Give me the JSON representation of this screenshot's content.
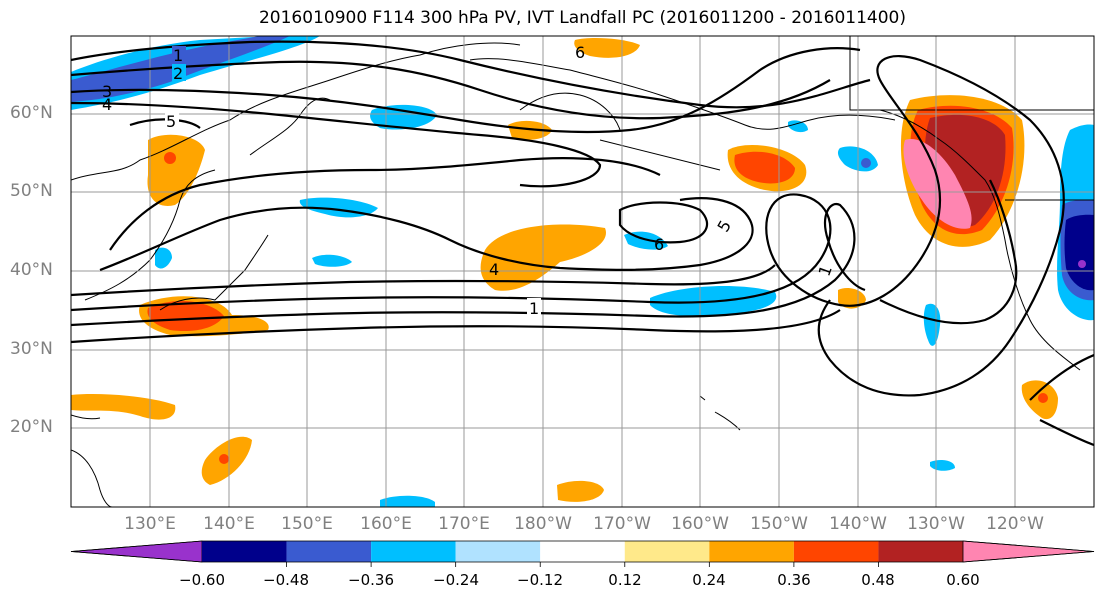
{
  "title": "2016010900 F114 300 hPa PV, IVT Landfall PC (2016011200 - 2016011400)",
  "lat_labels": [
    "60°N",
    "50°N",
    "40°N",
    "30°N",
    "20°N"
  ],
  "lon_labels": [
    "130°E",
    "140°E",
    "150°E",
    "160°E",
    "170°E",
    "180°W",
    "170°W",
    "160°W",
    "150°W",
    "140°W",
    "130°W",
    "120°W"
  ],
  "contour_labels": [
    "1",
    "2",
    "3",
    "4",
    "5",
    "6",
    "4",
    "1",
    "6",
    "5",
    "1"
  ],
  "colorbar": {
    "colors": [
      "#9932cc",
      "#00008b",
      "#3a5bd0",
      "#00bfff",
      "#b0e2ff",
      "#ffffff",
      "#ffe98a",
      "#ffa500",
      "#ff4500",
      "#b22222",
      "#ff85b1"
    ],
    "tick_labels": [
      "−0.60",
      "−0.48",
      "−0.36",
      "−0.24",
      "−0.12",
      "0.12",
      "0.24",
      "0.36",
      "0.48",
      "0.60"
    ]
  }
}
